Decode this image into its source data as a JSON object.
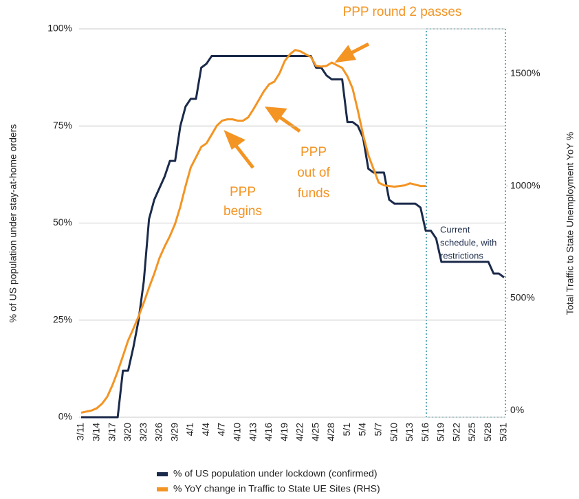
{
  "chart_data": {
    "type": "line",
    "y_label": "% of US population under stay-at-home orders",
    "y2_label": "Total Traffic to State Unemployment YoY %",
    "categories": [
      "3/11",
      null,
      null,
      "3/14",
      null,
      null,
      "3/17",
      null,
      null,
      "3/20",
      null,
      null,
      "3/23",
      null,
      null,
      "3/26",
      null,
      null,
      "3/29",
      null,
      null,
      "4/1",
      null,
      null,
      "4/4",
      null,
      null,
      "4/7",
      null,
      null,
      "4/10",
      null,
      null,
      "4/13",
      null,
      null,
      "4/16",
      null,
      null,
      "4/19",
      null,
      null,
      "4/22",
      null,
      null,
      "4/25",
      null,
      null,
      "4/28",
      null,
      null,
      "5/1",
      null,
      null,
      "5/4",
      null,
      null,
      "5/7",
      null,
      null,
      "5/10",
      null,
      null,
      "5/13",
      null,
      null,
      "5/16",
      null,
      null,
      "5/19",
      null,
      null,
      "5/22",
      null,
      null,
      "5/25",
      null,
      null,
      "5/28",
      null,
      null,
      "5/31"
    ],
    "series": [
      {
        "name": "% of US population under lockdown (confirmed)",
        "color": "#1b2a4a",
        "values": [
          0,
          0,
          0,
          0,
          0,
          0,
          0,
          0,
          12,
          12,
          18,
          25,
          35,
          51,
          56,
          59,
          62,
          66,
          66,
          75,
          80,
          82,
          82,
          90,
          91,
          93,
          93,
          93,
          93,
          93,
          93,
          93,
          93,
          93,
          93,
          93,
          93,
          93,
          93,
          93,
          93,
          93,
          93,
          93,
          93,
          90,
          90,
          88,
          87,
          87,
          87,
          76,
          76,
          75,
          72,
          64,
          63,
          63,
          63,
          56,
          55,
          55,
          55,
          55,
          55,
          54,
          48,
          48,
          46,
          40,
          40,
          40,
          40,
          40,
          40,
          40,
          40,
          40,
          40,
          37,
          37,
          36
        ]
      },
      {
        "name": "% YoY change in Traffic to State UE Sites (RHS)",
        "color": "#f39423",
        "axis": "y2",
        "values": [
          -10,
          -5,
          0,
          10,
          30,
          61,
          113,
          174,
          242,
          312,
          364,
          419,
          480,
          547,
          609,
          679,
          731,
          777,
          832,
          908,
          1000,
          1083,
          1128,
          1174,
          1190,
          1229,
          1269,
          1291,
          1297,
          1297,
          1291,
          1291,
          1306,
          1342,
          1382,
          1422,
          1453,
          1465,
          1502,
          1557,
          1587,
          1606,
          1600,
          1587,
          1575,
          1535,
          1532,
          1535,
          1550,
          1538,
          1526,
          1489,
          1434,
          1336,
          1229,
          1138,
          1076,
          1015,
          1003,
          1000,
          997,
          1000,
          1003,
          1012,
          1006,
          1000,
          1000,
          null,
          null,
          null,
          null,
          null,
          null,
          null,
          null,
          null,
          null,
          null,
          null,
          null,
          null,
          null
        ]
      }
    ],
    "ylim": [
      0,
      100
    ],
    "yticks": [
      {
        "value": 0,
        "label": "0%"
      },
      {
        "value": 25,
        "label": "25%"
      },
      {
        "value": 50,
        "label": "50%"
      },
      {
        "value": 75,
        "label": "75%"
      },
      {
        "value": 100,
        "label": "100%"
      }
    ],
    "y2lim": [
      -30,
      1700
    ],
    "y2ticks": [
      {
        "value": 0,
        "label": "0%"
      },
      {
        "value": 500,
        "label": "500%"
      },
      {
        "value": 1000,
        "label": "1000%"
      },
      {
        "value": 1500,
        "label": "1500%"
      }
    ],
    "grid": true,
    "annotations": [
      {
        "lines": [
          "PPP round 2 passes"
        ],
        "color": "#f39423"
      },
      {
        "lines": [
          "PPP",
          "out of",
          "funds"
        ],
        "color": "#f39423"
      },
      {
        "lines": [
          "PPP",
          "begins"
        ],
        "color": "#f39423"
      },
      {
        "lines": [
          "Current",
          "schedule, with",
          "restrictions"
        ],
        "color": "#1b2a4a"
      }
    ]
  }
}
